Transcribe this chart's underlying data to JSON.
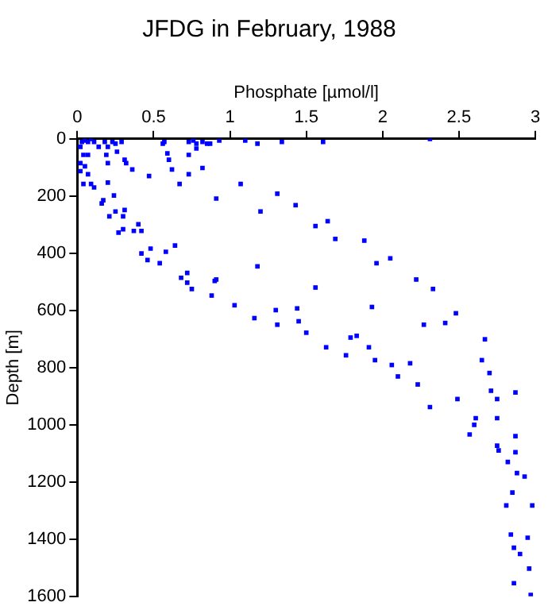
{
  "chart_data": {
    "type": "scatter",
    "title": "JFDG in February, 1988",
    "xlabel": "Phosphate [µmol/l]",
    "ylabel": "Depth [m]",
    "x": [
      0.03,
      0.05,
      0.07,
      0.09,
      0.11,
      0.14,
      0.02,
      0.04,
      0.07,
      0.02,
      0.05,
      0.02,
      0.07,
      0.04,
      0.09,
      0.11,
      0.18,
      0.2,
      0.23,
      0.25,
      0.29,
      0.19,
      0.26,
      0.2,
      0.31,
      0.32,
      0.36,
      0.2,
      0.47,
      0.57,
      0.56,
      0.59,
      0.6,
      0.62,
      0.67,
      0.73,
      0.73,
      0.76,
      0.78,
      0.82,
      0.85,
      0.87,
      0.78,
      0.73,
      0.82,
      0.93,
      1.1,
      1.18,
      1.34,
      1.61,
      2.31,
      0.17,
      0.16,
      0.24,
      0.21,
      0.25,
      0.31,
      0.3,
      0.27,
      0.3,
      0.37,
      0.4,
      0.42,
      0.42,
      0.48,
      0.46,
      0.58,
      0.54,
      0.64,
      0.68,
      0.72,
      0.72,
      0.75,
      0.88,
      0.9,
      1.07,
      0.91,
      1.31,
      1.2,
      1.43,
      1.56,
      1.64,
      1.69,
      1.88,
      1.18,
      1.96,
      2.05,
      2.22,
      0.91,
      1.03,
      1.16,
      1.3,
      1.44,
      1.31,
      1.45,
      1.5,
      1.56,
      1.63,
      1.76,
      1.79,
      1.83,
      1.91,
      1.93,
      1.95,
      2.06,
      2.1,
      2.18,
      2.23,
      2.31,
      2.33,
      2.27,
      2.41,
      2.48,
      2.49,
      2.67,
      2.65,
      2.7,
      2.71,
      2.75,
      2.87,
      2.75,
      2.61,
      2.6,
      2.57,
      2.87,
      2.75,
      2.76,
      2.87,
      2.82,
      2.88,
      2.93,
      2.85,
      2.81,
      2.98,
      2.84,
      2.95,
      2.86,
      2.9,
      2.96,
      2.86,
      2.97
    ],
    "values": [
      11,
      6,
      11,
      0,
      11,
      28,
      28,
      56,
      56,
      85,
      96,
      113,
      124,
      158,
      158,
      170,
      11,
      28,
      11,
      17,
      11,
      56,
      45,
      85,
      73,
      85,
      107,
      153,
      130,
      11,
      17,
      51,
      73,
      107,
      158,
      124,
      11,
      6,
      17,
      11,
      17,
      17,
      34,
      56,
      102,
      6,
      6,
      17,
      11,
      11,
      0,
      215,
      226,
      198,
      271,
      254,
      249,
      271,
      328,
      316,
      322,
      299,
      322,
      401,
      384,
      424,
      395,
      435,
      373,
      486,
      469,
      503,
      525,
      548,
      497,
      158,
      209,
      192,
      254,
      232,
      305,
      288,
      350,
      356,
      446,
      435,
      418,
      492,
      492,
      582,
      627,
      599,
      593,
      650,
      638,
      678,
      520,
      729,
      757,
      695,
      689,
      729,
      588,
      774,
      791,
      831,
      785,
      859,
      938,
      525,
      650,
      644,
      610,
      910,
      701,
      774,
      819,
      881,
      910,
      887,
      977,
      977,
      1000,
      1034,
      1040,
      1073,
      1090,
      1096,
      1130,
      1169,
      1181,
      1237,
      1282,
      1282,
      1384,
      1395,
      1430,
      1452,
      1503,
      1554,
      1595
    ],
    "color": "#0000ff",
    "marker": "square",
    "xlim": [
      0,
      3
    ],
    "xticks": [
      0,
      0.5,
      1,
      1.5,
      2,
      2.5,
      3
    ],
    "ylim": [
      1600,
      0
    ],
    "yticks": [
      0,
      200,
      400,
      600,
      800,
      1000,
      1200,
      1400,
      1600
    ],
    "grid": false
  }
}
